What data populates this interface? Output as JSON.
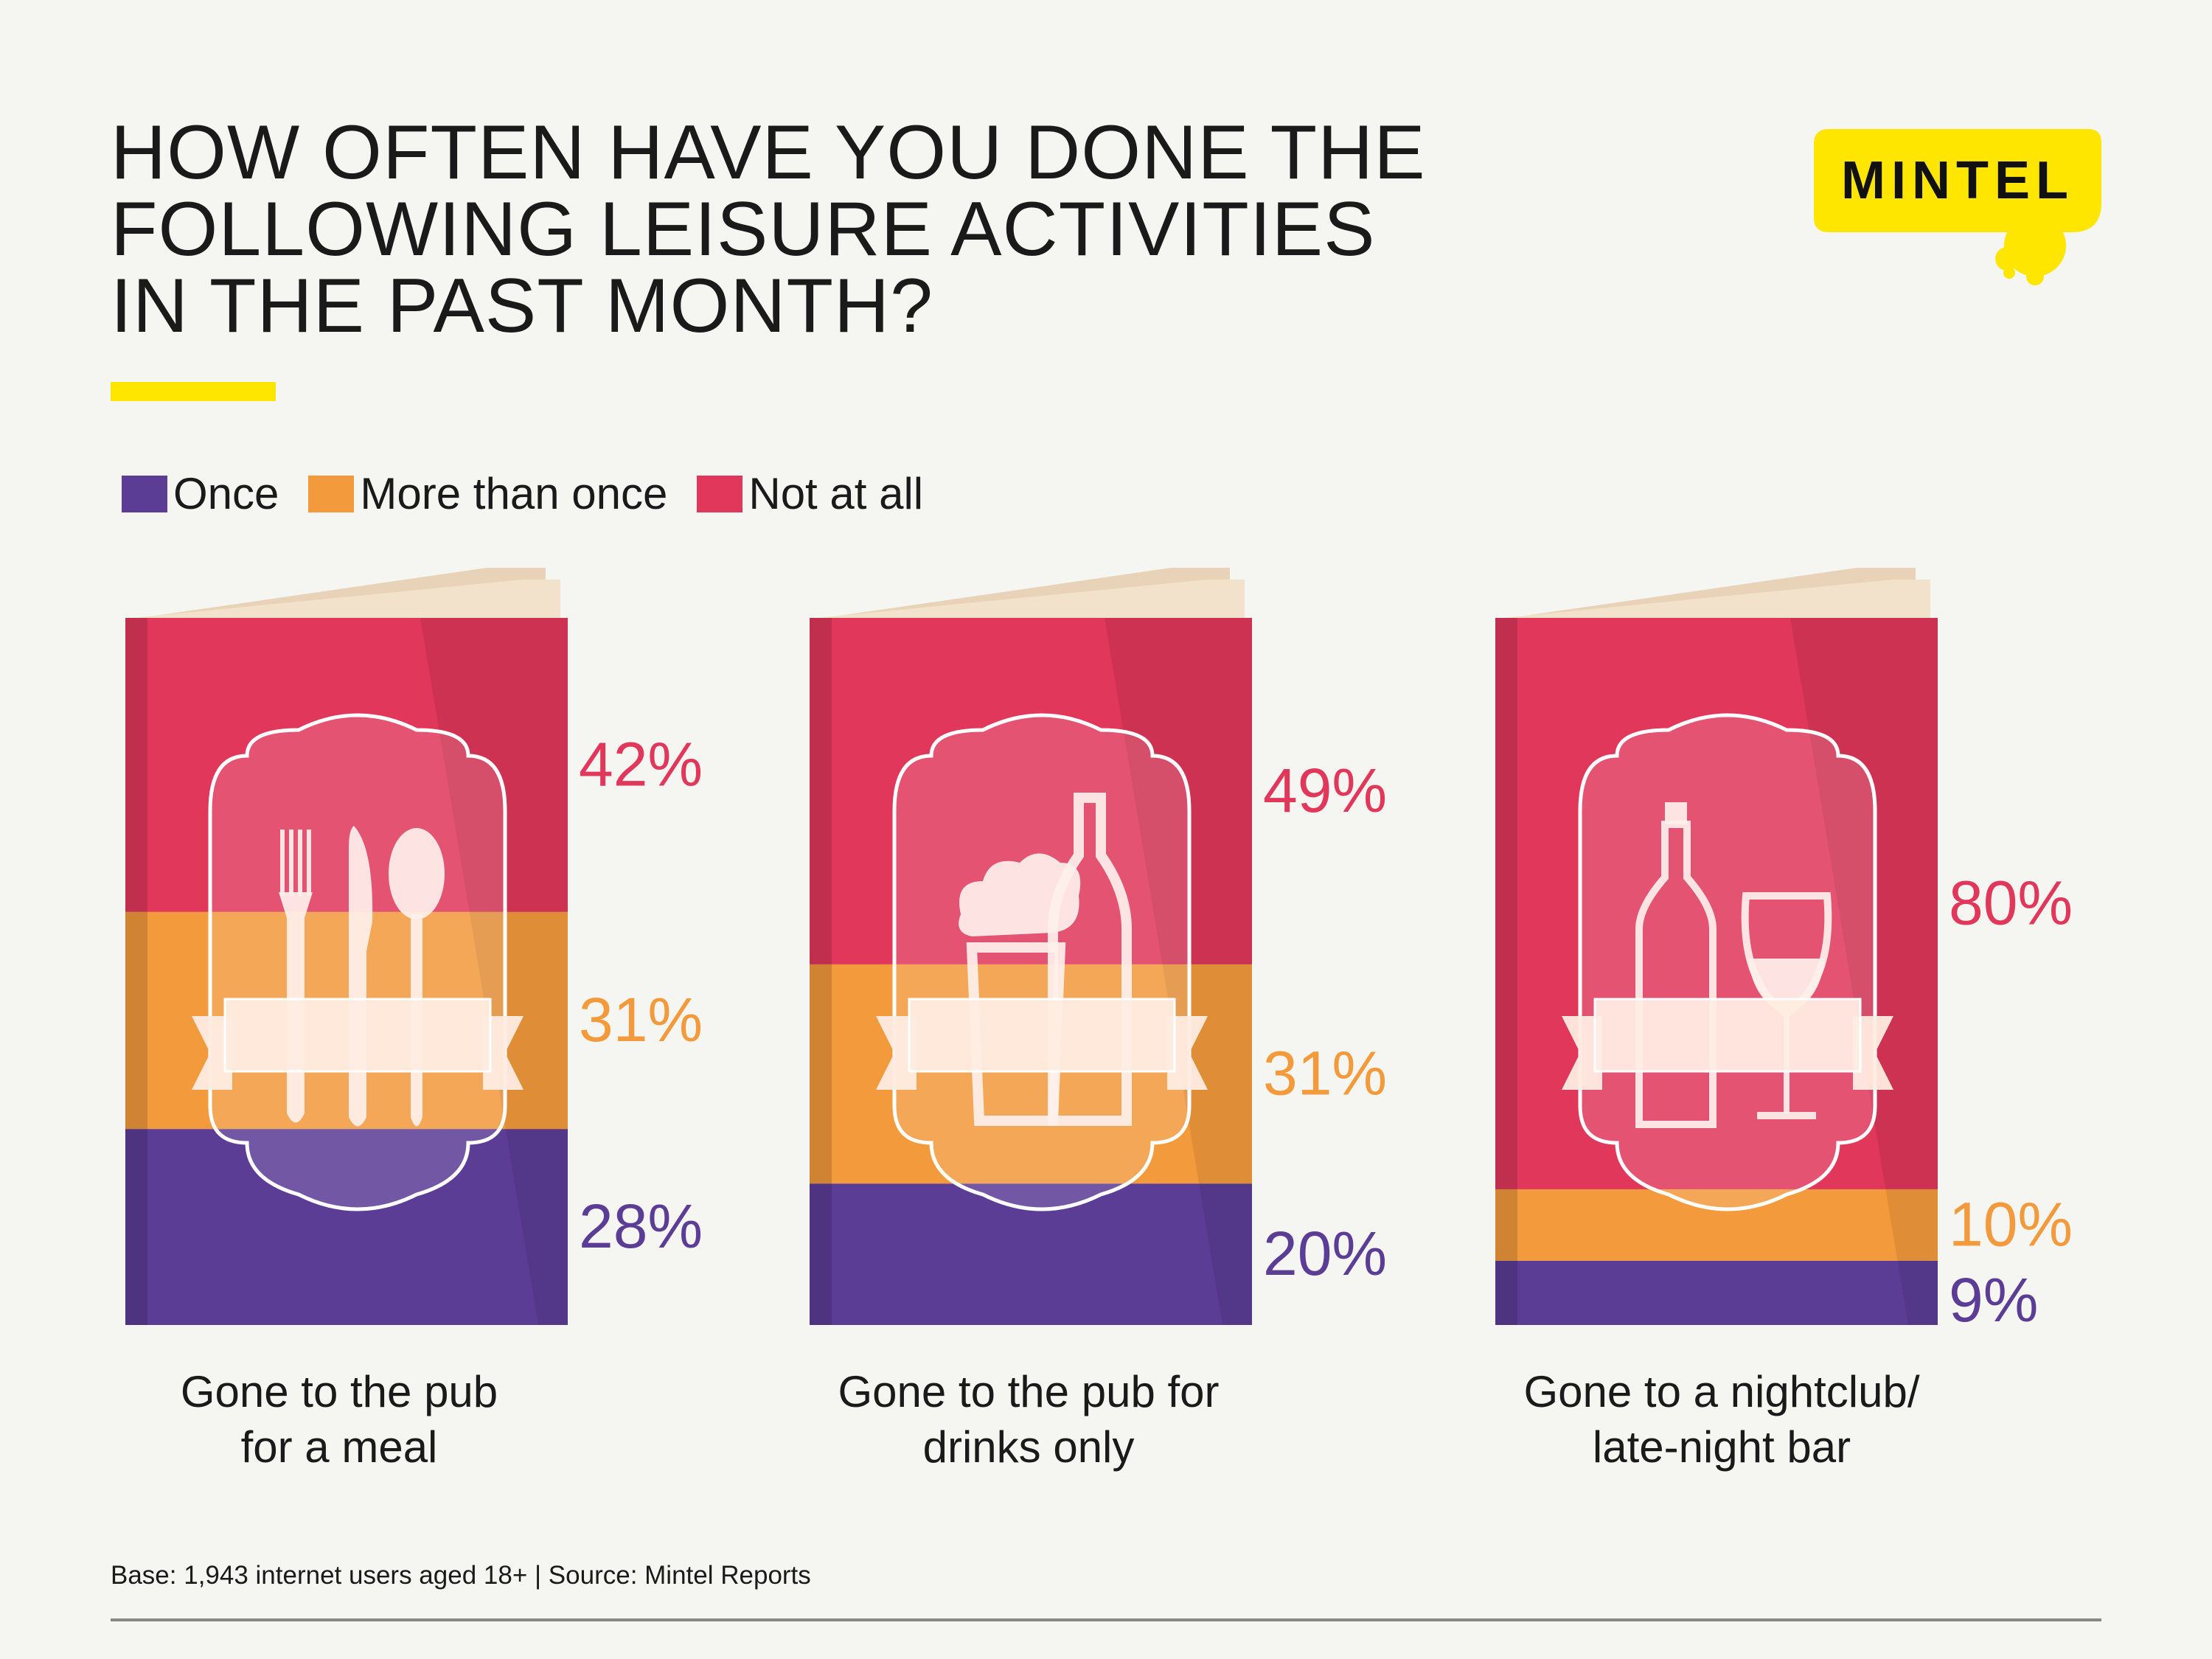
{
  "title": {
    "lines": [
      "HOW OFTEN HAVE YOU DONE THE",
      "FOLLOWING LEISURE ACTIVITIES",
      "IN THE PAST MONTH?"
    ]
  },
  "brand": {
    "name": "MINTEL"
  },
  "colors": {
    "once": "#5b3d96",
    "more_than_once": "#f39a3c",
    "not_at_all": "#e0375a",
    "accent": "#ffe600"
  },
  "legend": [
    {
      "label": "Once",
      "color": "#5b3d96"
    },
    {
      "label": "More than once",
      "color": "#f39a3c"
    },
    {
      "label": "Not at all",
      "color": "#e0375a"
    }
  ],
  "chart_data": {
    "type": "bar",
    "stacked": true,
    "title": "HOW OFTEN HAVE YOU DONE THE FOLLOWING LEISURE ACTIVITIES IN THE PAST MONTH?",
    "categories": [
      "Gone to the pub for a meal",
      "Gone to the pub for drinks only",
      "Gone to a nightclub/ late-night bar"
    ],
    "category_lines": [
      [
        "Gone to the pub",
        "for a meal"
      ],
      [
        "Gone to the pub for",
        "drinks only"
      ],
      [
        "Gone to a nightclub/",
        "late-night bar"
      ]
    ],
    "icons": [
      "cutlery-icon",
      "beer-bottle-icon",
      "wine-bottle-glass-icon"
    ],
    "series": [
      {
        "name": "Once",
        "values": [
          28,
          20,
          9
        ],
        "labels": [
          "28%",
          "20%",
          "9%"
        ]
      },
      {
        "name": "More than once",
        "values": [
          31,
          31,
          10
        ],
        "labels": [
          "31%",
          "31%",
          "10%"
        ]
      },
      {
        "name": "Not at all",
        "values": [
          42,
          49,
          80
        ],
        "labels": [
          "42%",
          "49%",
          "80%"
        ]
      }
    ],
    "ylim": [
      0,
      100
    ],
    "unit": "%",
    "legend_position": "top-left",
    "grid": false
  },
  "footer": {
    "source": "Base: 1,943 internet users aged 18+ | Source: Mintel Reports"
  }
}
